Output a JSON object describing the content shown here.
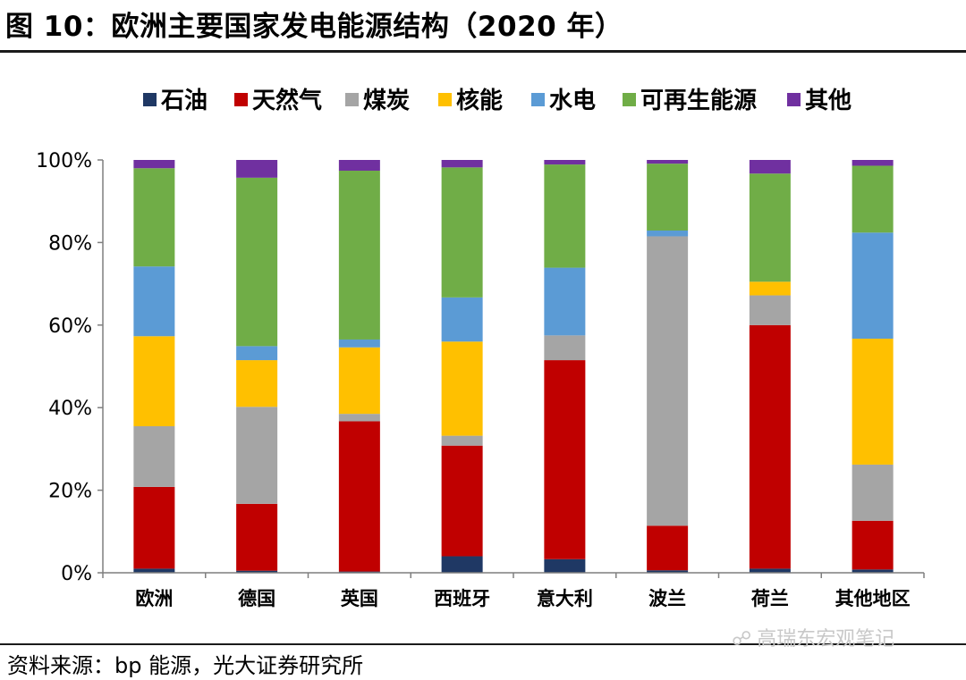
{
  "title": "图 10：欧洲主要国家发电能源结构（2020 年）",
  "source": "资料来源：bp 能源，光大证券研究所",
  "watermark": "高瑞东宏观笔记",
  "watermark_icon": "wechat-icon",
  "chart_data": {
    "type": "bar",
    "stacked": true,
    "normalized": true,
    "categories": [
      "欧洲",
      "德国",
      "英国",
      "西班牙",
      "意大利",
      "波兰",
      "荷兰",
      "其他地区"
    ],
    "yticks": [
      "0%",
      "20%",
      "40%",
      "60%",
      "80%",
      "100%"
    ],
    "ylim": [
      0,
      100
    ],
    "legend_position": "top",
    "grid": false,
    "series": [
      {
        "name": "石油",
        "color": "#1F3864",
        "values": [
          1.0,
          0.5,
          0.3,
          4.0,
          3.3,
          0.6,
          1.0,
          0.8
        ]
      },
      {
        "name": "天然气",
        "color": "#C00000",
        "values": [
          19.8,
          16.2,
          36.4,
          26.8,
          48.2,
          10.8,
          59.0,
          11.8
        ]
      },
      {
        "name": "煤炭",
        "color": "#A5A5A5",
        "values": [
          14.7,
          23.5,
          1.8,
          2.4,
          6.0,
          70.1,
          7.2,
          13.6
        ]
      },
      {
        "name": "核能",
        "color": "#FFC000",
        "values": [
          21.8,
          11.3,
          16.1,
          22.8,
          0.0,
          0.0,
          3.3,
          30.5
        ]
      },
      {
        "name": "水电",
        "color": "#5B9BD5",
        "values": [
          16.9,
          3.4,
          1.9,
          10.7,
          16.4,
          1.4,
          0.0,
          25.7
        ]
      },
      {
        "name": "可再生能源",
        "color": "#70AD47",
        "values": [
          23.8,
          40.8,
          40.9,
          31.5,
          25.0,
          16.2,
          26.2,
          16.2
        ]
      },
      {
        "name": "其他",
        "color": "#7030A0",
        "values": [
          2.0,
          4.3,
          2.6,
          1.8,
          1.1,
          0.9,
          3.3,
          1.4
        ]
      }
    ]
  }
}
